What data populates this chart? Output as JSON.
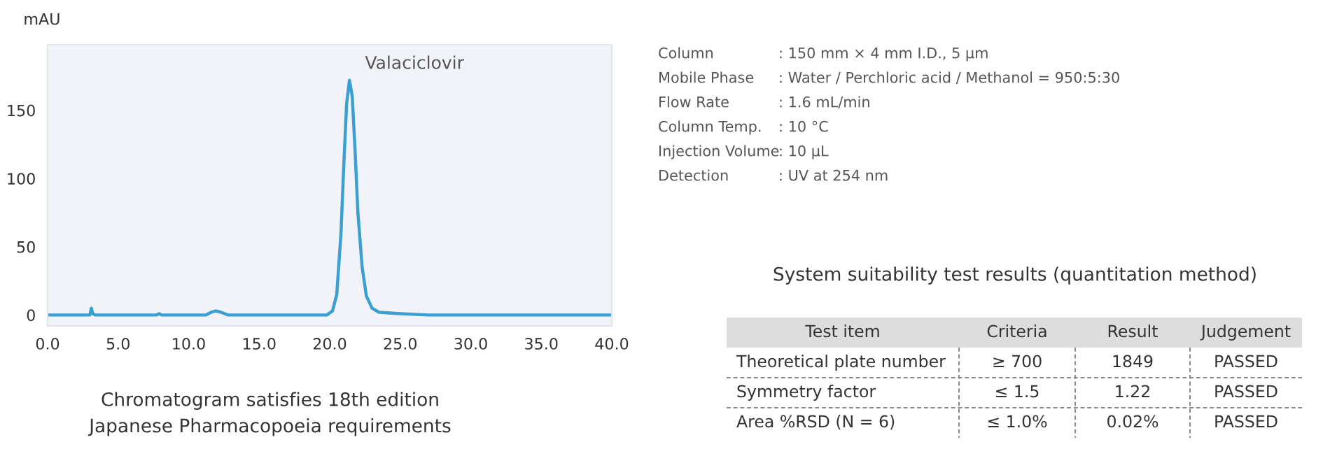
{
  "chart_data": [
    {
      "type": "line",
      "ylabel": "mAU",
      "x": [
        0,
        3.0,
        3.1,
        3.2,
        3.4,
        7.7,
        7.9,
        8.1,
        11.2,
        11.6,
        11.9,
        12.3,
        12.8,
        19.8,
        20.2,
        20.5,
        20.8,
        21.0,
        21.2,
        21.4,
        21.6,
        21.8,
        22.0,
        22.3,
        22.6,
        23.0,
        23.5,
        25.0,
        27.0,
        40.0
      ],
      "series": [
        {
          "color": "#3b9fd1",
          "values": [
            0,
            0,
            5,
            1,
            0,
            0,
            1,
            0,
            0,
            2,
            3,
            2,
            0,
            0,
            3,
            15,
            60,
            110,
            155,
            172,
            160,
            120,
            75,
            35,
            14,
            5,
            2,
            1,
            0,
            0
          ]
        }
      ],
      "xlim": [
        0,
        40
      ],
      "ylim": [
        -8,
        198
      ],
      "xticks": [
        {
          "value": 0,
          "label": "0.0"
        },
        {
          "value": 5,
          "label": "5.0"
        },
        {
          "value": 10,
          "label": "10.0"
        },
        {
          "value": 15,
          "label": "15.0"
        },
        {
          "value": 20,
          "label": "20.0"
        },
        {
          "value": 25,
          "label": "25.0"
        },
        {
          "value": 30,
          "label": "30.0"
        },
        {
          "value": 35,
          "label": "35.0"
        },
        {
          "value": 40,
          "label": "40.0"
        }
      ],
      "yticks": [
        0,
        50,
        100,
        150
      ],
      "annotations": [
        {
          "text": "Valaciclovir",
          "x": 21.4,
          "y": 172
        },
        "Chromatogram satisfies 18th edition\nJapanese Pharmacopoeia requirements"
      ]
    },
    {
      "type": "other",
      "annotations": [
        "Column: 150 mm × 4 mm I.D., 5 µm",
        "Mobile Phase: Water / Perchloric acid / Methanol = 950:5:30",
        "Flow Rate: 1.6 mL/min",
        "Column Temp.: 10 °C",
        "Injection Volume: 10 µL",
        "Detection: UV at 254 nm"
      ]
    },
    {
      "type": "other",
      "title": "System suitability test results (quantitation method)",
      "annotations": [
        "Test item",
        "Criteria",
        "Result",
        "Judgement",
        "Theoretical plate number",
        "≥ 700",
        "1849",
        "PASSED",
        "Symmetry factor",
        "≤ 1.5",
        "1.22",
        "PASSED",
        "Area %RSD (N = 6)",
        "≤ 1.0%",
        "0.02%",
        "PASSED"
      ]
    }
  ]
}
